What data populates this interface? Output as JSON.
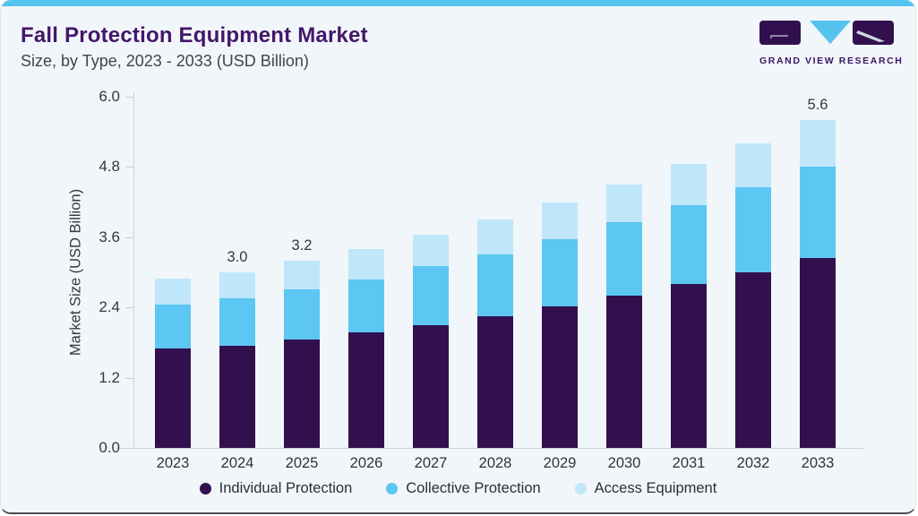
{
  "header": {
    "title": "Fall Protection Equipment Market",
    "subtitle": "Size, by Type, 2023 - 2033 (USD Billion)"
  },
  "logo": {
    "text": "GRAND VIEW RESEARCH",
    "mark_purple": "#32104e",
    "mark_blue": "#55c3ee"
  },
  "chart_data": {
    "type": "bar",
    "stacked": true,
    "title": "Fall Protection Equipment Market Size, by Type, 2023 - 2033 (USD Billion)",
    "ylabel": "Market Size (USD Billion)",
    "xlabel": "",
    "ylim": [
      0,
      6.0
    ],
    "yticks": [
      "0.0",
      "1.2",
      "2.4",
      "3.6",
      "4.8",
      "6.0"
    ],
    "grid": false,
    "legend_position": "bottom",
    "categories": [
      "2023",
      "2024",
      "2025",
      "2026",
      "2027",
      "2028",
      "2029",
      "2030",
      "2031",
      "2032",
      "2033"
    ],
    "series": [
      {
        "name": "Individual Protection",
        "color": "#32104e",
        "values": [
          1.7,
          1.75,
          1.85,
          1.97,
          2.1,
          2.25,
          2.42,
          2.6,
          2.8,
          3.0,
          3.25
        ]
      },
      {
        "name": "Collective Protection",
        "color": "#5bc7f2",
        "values": [
          0.75,
          0.8,
          0.86,
          0.91,
          1.0,
          1.05,
          1.15,
          1.25,
          1.35,
          1.45,
          1.55
        ]
      },
      {
        "name": "Access Equipment",
        "color": "#bfe7f9",
        "values": [
          0.45,
          0.45,
          0.49,
          0.52,
          0.55,
          0.6,
          0.63,
          0.65,
          0.7,
          0.75,
          0.8
        ]
      }
    ],
    "totals": [
      2.9,
      3.0,
      3.2,
      3.4,
      3.65,
      3.9,
      4.2,
      4.5,
      4.85,
      5.2,
      5.6
    ],
    "bar_labels": [
      "",
      "3.0",
      "3.2",
      "",
      "",
      "",
      "",
      "",
      "",
      "",
      "5.6"
    ]
  },
  "colors": {
    "card_bg": "#f1f6fa",
    "top_strip": "#55c3ee",
    "title_text": "#431769",
    "axis_line": "#c6d1d9"
  }
}
